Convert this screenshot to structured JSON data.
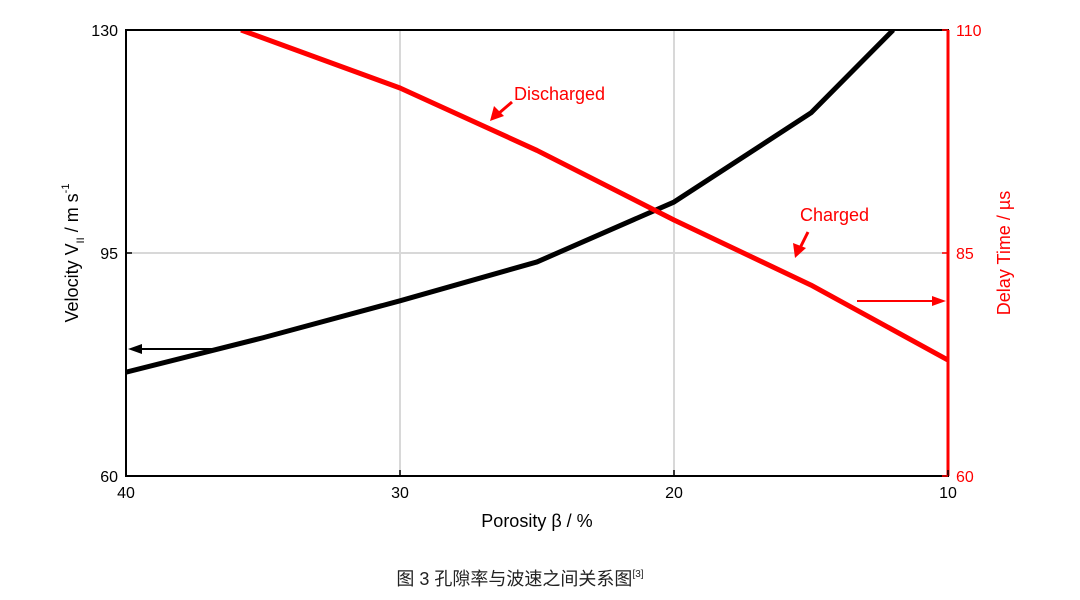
{
  "chart_data": {
    "type": "line",
    "xlabel": "Porosity β / %",
    "ylabel": {
      "main": "Velocity V",
      "sub": "II",
      "unit": " / m s",
      "sup": "-1"
    },
    "y2label": "Delay Time / µs",
    "xlim": [
      40,
      10
    ],
    "xticks": [
      40,
      30,
      20,
      10
    ],
    "ylim": [
      60,
      130
    ],
    "yticks": [
      60,
      95,
      130
    ],
    "y2lim": [
      60,
      110
    ],
    "y2ticks": [
      60,
      85,
      110
    ],
    "grid": true,
    "series": [
      {
        "x": [
          40,
          35,
          30,
          25,
          20,
          15,
          12
        ],
        "values": [
          76.3,
          81.7,
          87.5,
          93.6,
          103,
          117,
          130
        ],
        "color": "#000000",
        "axis": "y"
      },
      {
        "x": [
          35.8,
          30,
          25,
          20,
          15,
          10
        ],
        "values": [
          110,
          103.5,
          96.5,
          88.7,
          81.4,
          73
        ],
        "color": "#ff0000",
        "axis": "y2"
      }
    ],
    "annotations": [
      "Discharged",
      "Charged"
    ],
    "caption": {
      "text": "图 3  孔隙率与波速之间关系图",
      "ref": "[3]"
    }
  }
}
